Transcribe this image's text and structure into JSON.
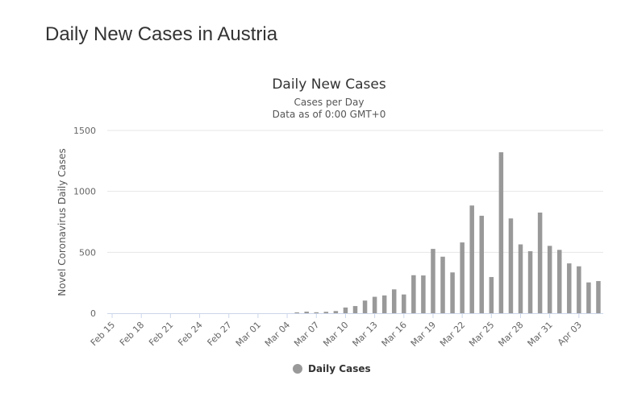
{
  "page": {
    "heading": "Daily New Cases in Austria"
  },
  "colors": {
    "bar": "#999999",
    "grid": "#e6e6e6",
    "axis": "#ccd6eb"
  },
  "chart_data": {
    "type": "bar",
    "title": "Daily New Cases",
    "subtitle": "Cases per Day",
    "subtitle2": "Data as of 0:00 GMT+0",
    "ylabel": "Novel Coronavirus Daily Cases",
    "xlabel": "",
    "ylim": [
      0,
      1500
    ],
    "yticks": [
      0,
      500,
      1000,
      1500
    ],
    "grid": true,
    "legend": {
      "position": "bottom-center",
      "label": "Daily Cases"
    },
    "x_tick_labels": [
      "Feb 15",
      "Feb 18",
      "Feb 21",
      "Feb 24",
      "Feb 27",
      "Mar 01",
      "Mar 04",
      "Mar 07",
      "Mar 10",
      "Mar 13",
      "Mar 16",
      "Mar 19",
      "Mar 22",
      "Mar 25",
      "Mar 28",
      "Mar 31",
      "Apr 03"
    ],
    "categories": [
      "Feb 15",
      "Feb 16",
      "Feb 17",
      "Feb 18",
      "Feb 19",
      "Feb 20",
      "Feb 21",
      "Feb 22",
      "Feb 23",
      "Feb 24",
      "Feb 25",
      "Feb 26",
      "Feb 27",
      "Feb 28",
      "Feb 29",
      "Mar 01",
      "Mar 02",
      "Mar 03",
      "Mar 04",
      "Mar 05",
      "Mar 06",
      "Mar 07",
      "Mar 08",
      "Mar 09",
      "Mar 10",
      "Mar 11",
      "Mar 12",
      "Mar 13",
      "Mar 14",
      "Mar 15",
      "Mar 16",
      "Mar 17",
      "Mar 18",
      "Mar 19",
      "Mar 20",
      "Mar 21",
      "Mar 22",
      "Mar 23",
      "Mar 24",
      "Mar 25",
      "Mar 26",
      "Mar 27",
      "Mar 28",
      "Mar 29",
      "Mar 30",
      "Mar 31",
      "Apr 01",
      "Apr 02",
      "Apr 03",
      "Apr 04",
      "Apr 05"
    ],
    "series": [
      {
        "name": "Daily Cases",
        "values": [
          0,
          0,
          0,
          0,
          0,
          0,
          0,
          0,
          0,
          0,
          0,
          0,
          0,
          0,
          0,
          0,
          0,
          0,
          0,
          7,
          13,
          8,
          12,
          18,
          47,
          59,
          104,
          135,
          146,
          196,
          154,
          312,
          310,
          528,
          464,
          335,
          581,
          884,
          800,
          297,
          1321,
          778,
          565,
          509,
          826,
          553,
          520,
          409,
          385,
          253,
          264
        ]
      }
    ]
  }
}
